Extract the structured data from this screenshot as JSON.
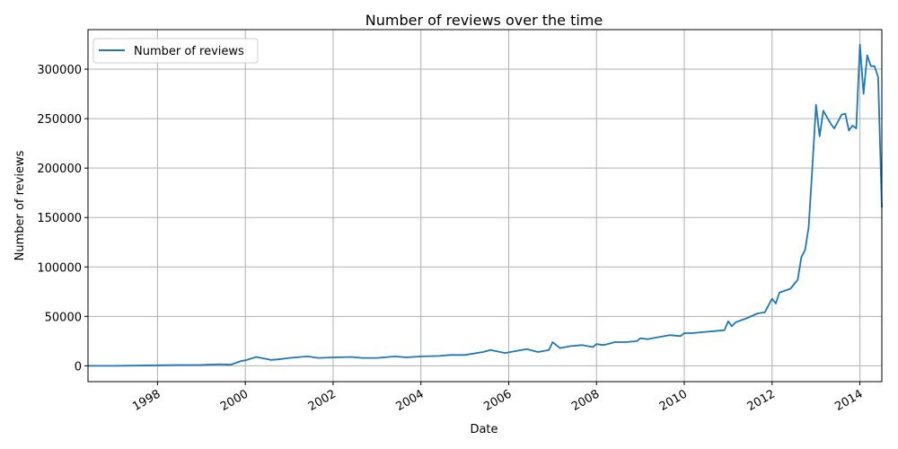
{
  "chart_data": {
    "type": "line",
    "title": "Number of reviews over the time",
    "xlabel": "Date",
    "ylabel": "Number of reviews",
    "xlim": [
      "1996-06",
      "2014-07"
    ],
    "ylim": [
      -16000,
      340000
    ],
    "grid": true,
    "legend_position": "top-left",
    "line_color": "#1f77b4",
    "x_ticks": [
      "1998",
      "2000",
      "2002",
      "2004",
      "2006",
      "2008",
      "2010",
      "2012",
      "2014"
    ],
    "y_ticks": [
      "0",
      "50000",
      "100000",
      "150000",
      "200000",
      "250000",
      "300000"
    ],
    "series": [
      {
        "name": "Number of reviews",
        "x": [
          "1996-06",
          "1997-01",
          "1997-06",
          "1998-01",
          "1998-06",
          "1999-01",
          "1999-06",
          "1999-09",
          "1999-12",
          "2000-01",
          "2000-04",
          "2000-08",
          "2000-10",
          "2001-01",
          "2001-06",
          "2001-09",
          "2002-01",
          "2002-06",
          "2002-09",
          "2003-01",
          "2003-06",
          "2003-09",
          "2004-01",
          "2004-06",
          "2004-09",
          "2005-01",
          "2005-06",
          "2005-08",
          "2005-12",
          "2006-03",
          "2006-06",
          "2006-09",
          "2006-12",
          "2007-01",
          "2007-03",
          "2007-06",
          "2007-09",
          "2007-12",
          "2008-01",
          "2008-03",
          "2008-06",
          "2008-09",
          "2008-12",
          "2009-01",
          "2009-03",
          "2009-06",
          "2009-09",
          "2009-12",
          "2010-01",
          "2010-03",
          "2010-06",
          "2010-09",
          "2010-12",
          "2011-01",
          "2011-02",
          "2011-03",
          "2011-06",
          "2011-09",
          "2011-11",
          "2012-01",
          "2012-02",
          "2012-03",
          "2012-06",
          "2012-08",
          "2012-09",
          "2012-10",
          "2012-11",
          "2012-12",
          "2013-01",
          "2013-02",
          "2013-03",
          "2013-05",
          "2013-06",
          "2013-08",
          "2013-09",
          "2013-10",
          "2013-11",
          "2013-12",
          "2014-01",
          "2014-02",
          "2014-03",
          "2014-04",
          "2014-05",
          "2014-06",
          "2014-07"
        ],
        "y": [
          0,
          0,
          200,
          500,
          800,
          900,
          1500,
          1200,
          5000,
          5500,
          9000,
          6000,
          6500,
          8000,
          9500,
          8000,
          8500,
          9000,
          8000,
          8000,
          9500,
          8500,
          9500,
          10000,
          11000,
          11000,
          14000,
          16000,
          13000,
          15000,
          17000,
          14000,
          16000,
          24000,
          18000,
          20000,
          21000,
          19000,
          22000,
          21000,
          24000,
          24000,
          25000,
          28000,
          27000,
          29000,
          31000,
          30000,
          33000,
          33000,
          34000,
          35000,
          36000,
          45000,
          40000,
          44000,
          48000,
          53000,
          54000,
          68000,
          63000,
          74000,
          78000,
          87000,
          110000,
          117000,
          140000,
          200000,
          264000,
          232000,
          258000,
          245000,
          240000,
          254000,
          255000,
          238000,
          243000,
          240000,
          325000,
          275000,
          314000,
          303000,
          303000,
          292000,
          160000
        ]
      }
    ]
  }
}
